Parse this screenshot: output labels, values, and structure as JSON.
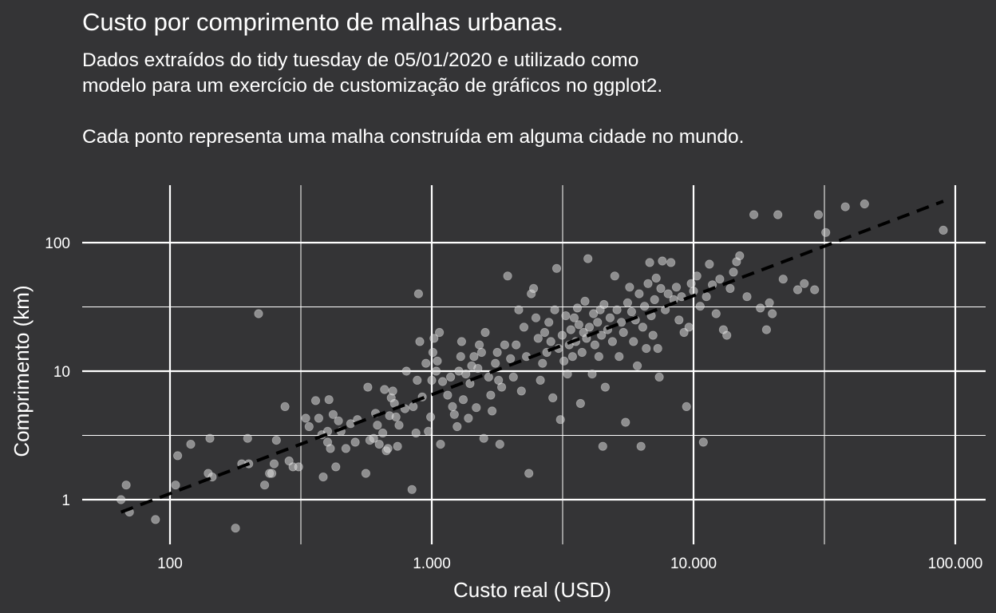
{
  "header": {
    "title": "Custo por comprimento de malhas urbanas.",
    "subtitle_lines": [
      "Dados extraídos do tidy tuesday de 05/01/2020 e utilizado como",
      "modelo para um exercício de customização de gráficos no ggplot2.",
      "Cada ponto representa uma malha construída em alguma cidade no mundo."
    ]
  },
  "colors": {
    "background": "#343436",
    "grid": "#ffffff",
    "points": "#d9d9d9",
    "trend_line": "#000000",
    "text": "#ffffff"
  },
  "chart_data": {
    "type": "scatter",
    "x_scale": "log10",
    "y_scale": "log10",
    "xlabel": "Custo real (USD)",
    "ylabel": "Comprimento (km)",
    "xlim": [
      45,
      130000
    ],
    "ylim": [
      0.5,
      270
    ],
    "x_ticks": [
      {
        "value": 100,
        "label": "100"
      },
      {
        "value": 1000,
        "label": "1.000"
      },
      {
        "value": 10000,
        "label": "10.000"
      },
      {
        "value": 100000,
        "label": "100.000"
      }
    ],
    "y_ticks": [
      {
        "value": 1,
        "label": "1"
      },
      {
        "value": 10,
        "label": "10"
      },
      {
        "value": 100,
        "label": "100"
      }
    ],
    "grid": true,
    "legend": "none",
    "trend_line": {
      "style": "dashed",
      "x": [
        65,
        90000
      ],
      "y": [
        0.8,
        210
      ]
    },
    "points": [
      [
        65,
        1.0
      ],
      [
        68,
        1.3
      ],
      [
        70,
        0.8
      ],
      [
        88,
        0.7
      ],
      [
        105,
        1.3
      ],
      [
        107,
        2.2
      ],
      [
        120,
        2.7
      ],
      [
        140,
        1.6
      ],
      [
        145,
        1.5
      ],
      [
        142,
        3.0
      ],
      [
        178,
        0.6
      ],
      [
        188,
        1.9
      ],
      [
        200,
        1.9
      ],
      [
        198,
        3.0
      ],
      [
        218,
        28
      ],
      [
        230,
        1.3
      ],
      [
        240,
        1.6
      ],
      [
        245,
        1.6
      ],
      [
        250,
        1.9
      ],
      [
        255,
        2.9
      ],
      [
        275,
        5.3
      ],
      [
        285,
        2.0
      ],
      [
        295,
        1.8
      ],
      [
        310,
        1.8
      ],
      [
        330,
        4.3
      ],
      [
        340,
        3.7
      ],
      [
        360,
        5.9
      ],
      [
        370,
        4.3
      ],
      [
        380,
        3.2
      ],
      [
        385,
        1.5
      ],
      [
        400,
        2.8
      ],
      [
        400,
        3.4
      ],
      [
        405,
        6.0
      ],
      [
        410,
        2.5
      ],
      [
        420,
        4.6
      ],
      [
        430,
        1.8
      ],
      [
        440,
        4.1
      ],
      [
        450,
        3.4
      ],
      [
        470,
        2.5
      ],
      [
        490,
        3.9
      ],
      [
        510,
        2.8
      ],
      [
        520,
        4.2
      ],
      [
        560,
        1.6
      ],
      [
        570,
        7.5
      ],
      [
        580,
        2.9
      ],
      [
        600,
        3.0
      ],
      [
        610,
        4.7
      ],
      [
        620,
        3.8
      ],
      [
        630,
        2.7
      ],
      [
        650,
        3.3
      ],
      [
        660,
        7.2
      ],
      [
        670,
        2.4
      ],
      [
        680,
        2.5
      ],
      [
        690,
        4.5
      ],
      [
        700,
        6.2
      ],
      [
        710,
        7.0
      ],
      [
        720,
        5.6
      ],
      [
        730,
        4.4
      ],
      [
        740,
        2.6
      ],
      [
        750,
        3.8
      ],
      [
        790,
        5.1
      ],
      [
        800,
        10
      ],
      [
        840,
        1.2
      ],
      [
        850,
        5.3
      ],
      [
        870,
        3.3
      ],
      [
        880,
        8.5
      ],
      [
        890,
        40
      ],
      [
        900,
        17
      ],
      [
        920,
        6.3
      ],
      [
        950,
        11.5
      ],
      [
        970,
        3.4
      ],
      [
        990,
        4.4
      ],
      [
        1000,
        8.5
      ],
      [
        1010,
        14
      ],
      [
        1020,
        18
      ],
      [
        1040,
        10
      ],
      [
        1050,
        12
      ],
      [
        1070,
        20
      ],
      [
        1080,
        2.7
      ],
      [
        1100,
        8.3
      ],
      [
        1150,
        6.5
      ],
      [
        1180,
        9.0
      ],
      [
        1200,
        5.3
      ],
      [
        1220,
        4.6
      ],
      [
        1250,
        3.7
      ],
      [
        1270,
        10
      ],
      [
        1290,
        13
      ],
      [
        1300,
        17
      ],
      [
        1320,
        6.0
      ],
      [
        1350,
        9.5
      ],
      [
        1380,
        4.3
      ],
      [
        1400,
        8.0
      ],
      [
        1420,
        11.0
      ],
      [
        1450,
        13.0
      ],
      [
        1480,
        5.2
      ],
      [
        1500,
        10.5
      ],
      [
        1520,
        16
      ],
      [
        1550,
        14
      ],
      [
        1580,
        3.0
      ],
      [
        1600,
        20
      ],
      [
        1650,
        9.0
      ],
      [
        1680,
        6.5
      ],
      [
        1700,
        4.9
      ],
      [
        1750,
        11.5
      ],
      [
        1780,
        14
      ],
      [
        1800,
        8.5
      ],
      [
        1820,
        2.7
      ],
      [
        1850,
        7.5
      ],
      [
        1900,
        16
      ],
      [
        1950,
        55
      ],
      [
        2000,
        12.5
      ],
      [
        2050,
        9.0
      ],
      [
        2100,
        16
      ],
      [
        2150,
        30
      ],
      [
        2200,
        7.0
      ],
      [
        2250,
        22
      ],
      [
        2300,
        13
      ],
      [
        2350,
        1.6
      ],
      [
        2400,
        40
      ],
      [
        2450,
        44
      ],
      [
        2500,
        26
      ],
      [
        2550,
        18
      ],
      [
        2600,
        8.5
      ],
      [
        2650,
        11.5
      ],
      [
        2700,
        20
      ],
      [
        2750,
        14
      ],
      [
        2800,
        24
      ],
      [
        2850,
        17
      ],
      [
        2900,
        6.2
      ],
      [
        2950,
        30
      ],
      [
        3000,
        63
      ],
      [
        3050,
        15
      ],
      [
        3100,
        4.2
      ],
      [
        3150,
        19
      ],
      [
        3200,
        12
      ],
      [
        3250,
        27
      ],
      [
        3300,
        9.5
      ],
      [
        3350,
        16
      ],
      [
        3400,
        21
      ],
      [
        3450,
        13
      ],
      [
        3500,
        26
      ],
      [
        3550,
        17
      ],
      [
        3600,
        31
      ],
      [
        3650,
        23
      ],
      [
        3700,
        5.6
      ],
      [
        3750,
        14
      ],
      [
        3800,
        20
      ],
      [
        3850,
        35
      ],
      [
        3900,
        18
      ],
      [
        3950,
        75
      ],
      [
        4000,
        22
      ],
      [
        4100,
        9.5
      ],
      [
        4150,
        28
      ],
      [
        4200,
        16
      ],
      [
        4300,
        24
      ],
      [
        4350,
        13
      ],
      [
        4400,
        30
      ],
      [
        4450,
        19
      ],
      [
        4500,
        2.6
      ],
      [
        4550,
        33
      ],
      [
        4600,
        7.5
      ],
      [
        4700,
        21
      ],
      [
        4800,
        26
      ],
      [
        4900,
        17
      ],
      [
        5000,
        55
      ],
      [
        5100,
        30
      ],
      [
        5200,
        13
      ],
      [
        5300,
        24
      ],
      [
        5400,
        20
      ],
      [
        5500,
        4.0
      ],
      [
        5600,
        34
      ],
      [
        5700,
        45
      ],
      [
        5800,
        29
      ],
      [
        5900,
        17
      ],
      [
        6000,
        25
      ],
      [
        6100,
        11
      ],
      [
        6200,
        40
      ],
      [
        6300,
        2.6
      ],
      [
        6400,
        22
      ],
      [
        6500,
        32
      ],
      [
        6600,
        15
      ],
      [
        6700,
        48
      ],
      [
        6800,
        70
      ],
      [
        6900,
        27
      ],
      [
        7000,
        19
      ],
      [
        7100,
        36
      ],
      [
        7200,
        53
      ],
      [
        7300,
        15
      ],
      [
        7400,
        9.0
      ],
      [
        7500,
        44
      ],
      [
        7600,
        72
      ],
      [
        7800,
        30
      ],
      [
        8000,
        40
      ],
      [
        8200,
        70
      ],
      [
        8400,
        36
      ],
      [
        8600,
        45
      ],
      [
        8800,
        25
      ],
      [
        9000,
        38
      ],
      [
        9200,
        20
      ],
      [
        9400,
        5.3
      ],
      [
        9600,
        22
      ],
      [
        9800,
        48
      ],
      [
        10000,
        42
      ],
      [
        10300,
        55
      ],
      [
        10600,
        32
      ],
      [
        10900,
        2.8
      ],
      [
        11200,
        38
      ],
      [
        11500,
        68
      ],
      [
        11800,
        47
      ],
      [
        12200,
        28
      ],
      [
        12600,
        52
      ],
      [
        13000,
        21
      ],
      [
        13400,
        19
      ],
      [
        13800,
        44
      ],
      [
        14200,
        59
      ],
      [
        14600,
        71
      ],
      [
        15000,
        79
      ],
      [
        16000,
        38
      ],
      [
        17000,
        165
      ],
      [
        18000,
        31
      ],
      [
        19000,
        21
      ],
      [
        19500,
        34
      ],
      [
        20000,
        28
      ],
      [
        21000,
        165
      ],
      [
        22000,
        52
      ],
      [
        25000,
        43
      ],
      [
        26500,
        48
      ],
      [
        29000,
        43
      ],
      [
        30000,
        165
      ],
      [
        32000,
        120
      ],
      [
        38000,
        190
      ],
      [
        45000,
        200
      ],
      [
        90000,
        125
      ]
    ]
  }
}
